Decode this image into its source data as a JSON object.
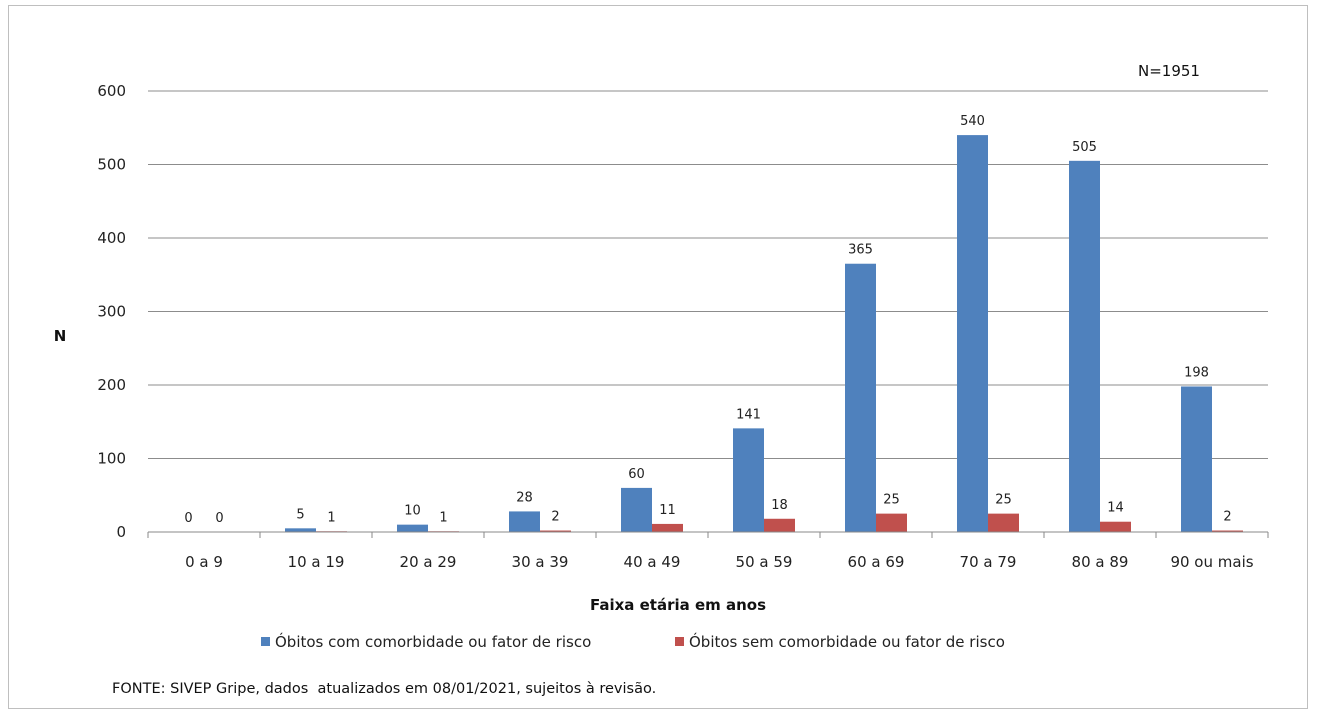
{
  "chart_data": {
    "type": "bar",
    "categories": [
      "0 a 9",
      "10 a 19",
      "20 a 29",
      "30 a 39",
      "40 a 49",
      "50 a 59",
      "60 a 69",
      "70 a 79",
      "80 a 89",
      "90 ou mais"
    ],
    "series": [
      {
        "name": "Óbitos com comorbidade ou fator de risco",
        "values": [
          0,
          5,
          10,
          28,
          60,
          141,
          365,
          540,
          505,
          198
        ],
        "color": "#4f81bd"
      },
      {
        "name": "Óbitos sem comorbidade ou fator de risco",
        "values": [
          0,
          1,
          1,
          2,
          11,
          18,
          25,
          25,
          14,
          2
        ],
        "color": "#c0504d"
      }
    ],
    "xlabel": "Faixa etária em anos",
    "ylabel": "N",
    "ylim": [
      0,
      600
    ],
    "yticks": [
      0,
      100,
      200,
      300,
      400,
      500,
      600
    ],
    "grid": true,
    "legend_position": "bottom",
    "annotation": "N=1951",
    "source_note": "FONTE: SIVEP Gripe, dados  atualizados em 08/01/2021, sujeitos à revisão."
  }
}
